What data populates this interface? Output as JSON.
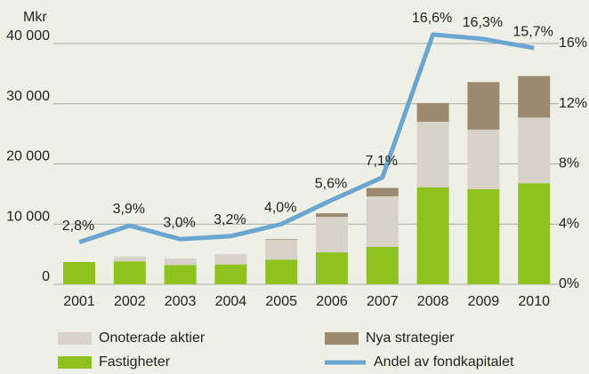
{
  "chart_data": {
    "type": "bar",
    "stacked": true,
    "ylabel": "Mkr",
    "categories": [
      "2001",
      "2002",
      "2003",
      "2004",
      "2005",
      "2006",
      "2007",
      "2008",
      "2009",
      "2010"
    ],
    "series": [
      {
        "name": "Fastigheter",
        "color": "#8dc21f",
        "values": [
          3700,
          3800,
          3200,
          3300,
          4100,
          5300,
          6200,
          16100,
          15800,
          16800
        ]
      },
      {
        "name": "Onoterade aktier",
        "color": "#d9d2c8",
        "values": [
          0,
          800,
          1100,
          1700,
          3300,
          5900,
          8400,
          10900,
          9900,
          10900
        ]
      },
      {
        "name": "Nya strategier",
        "color": "#9b8a70",
        "values": [
          0,
          0,
          0,
          0,
          100,
          600,
          1400,
          3100,
          7900,
          6900
        ]
      },
      {
        "name": "Andel av fondkapitalet",
        "type": "line",
        "axis": "y2",
        "color": "#6aa6cf",
        "values": [
          2.8,
          3.9,
          3.0,
          3.2,
          4.0,
          5.6,
          7.1,
          16.6,
          16.3,
          15.7
        ],
        "value_labels": [
          "2,8%",
          "3,9%",
          "3,0%",
          "3,2%",
          "4,0%",
          "5,6%",
          "7,1%",
          "16,6%",
          "16,3%",
          "15,7%"
        ]
      }
    ],
    "ylim": [
      0,
      40000
    ],
    "yticks": [
      0,
      {
        "value": 10000,
        "label": "10 000"
      },
      {
        "value": 20000,
        "label": "20 000"
      },
      {
        "value": 30000,
        "label": "30 000"
      },
      {
        "value": 40000,
        "label": "40 000"
      }
    ],
    "y2lim": [
      0,
      16
    ],
    "y2ticks": [
      {
        "value": 0,
        "label": "0%"
      },
      {
        "value": 4,
        "label": "4%"
      },
      {
        "value": 8,
        "label": "8%"
      },
      {
        "value": 12,
        "label": "12%"
      },
      {
        "value": 16,
        "label": "16%"
      }
    ],
    "grid": true,
    "legend": "bottom"
  }
}
